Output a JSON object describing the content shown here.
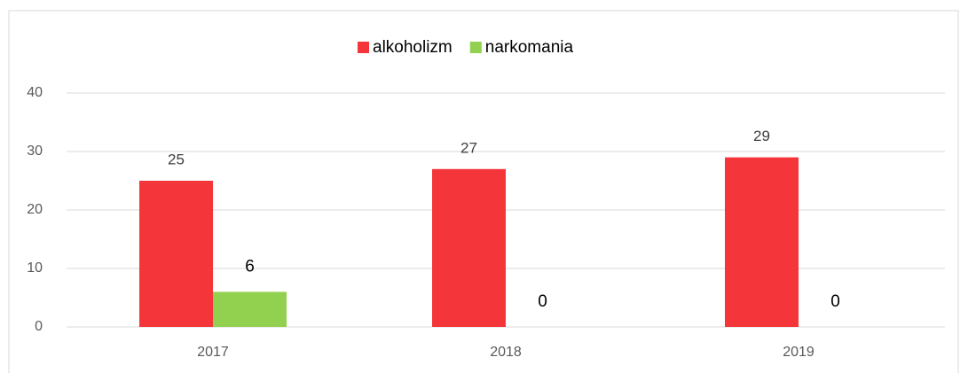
{
  "chart_data": {
    "type": "bar",
    "categories": [
      "2017",
      "2018",
      "2019"
    ],
    "series": [
      {
        "name": "alkoholizm",
        "color": "#f4363a",
        "values": [
          25,
          27,
          29
        ]
      },
      {
        "name": "narkomania",
        "color": "#92d050",
        "values": [
          6,
          0,
          0
        ]
      }
    ],
    "ylim": [
      0,
      40
    ],
    "yticks": [
      0,
      10,
      20,
      30,
      40
    ],
    "grid": true,
    "legend": "top"
  }
}
